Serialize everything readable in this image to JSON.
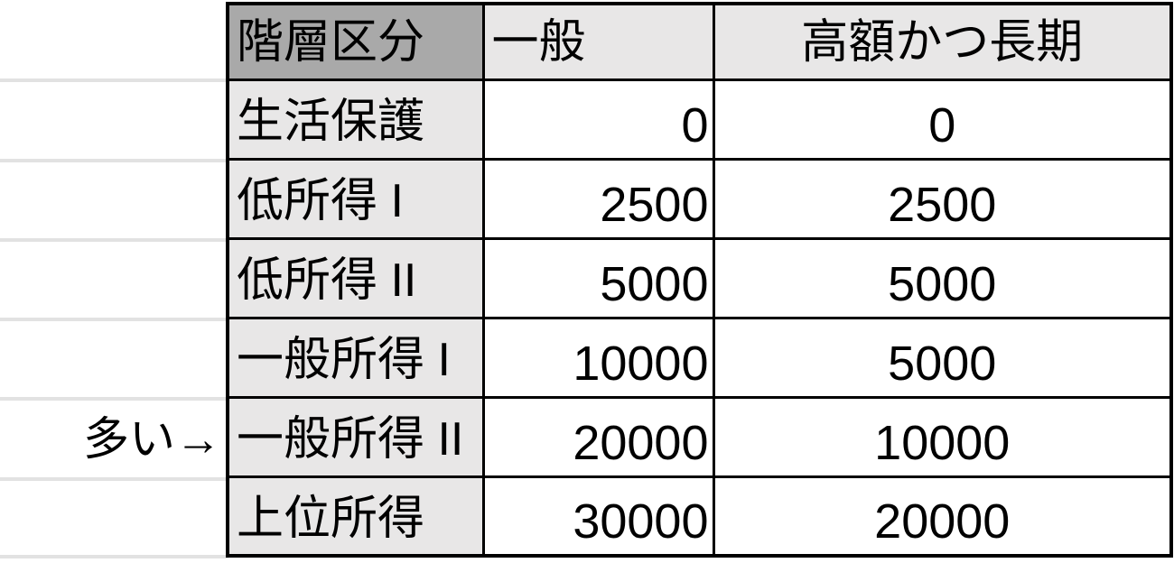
{
  "colors": {
    "header_dark_fill": "#a9a9a9",
    "light_gray_fill": "#e8e7e7",
    "cell_fill": "#ffffff",
    "table_border": "#000000",
    "text": "#000000",
    "margin_gridline": "#e2e2e2"
  },
  "annotation": {
    "text": "多い→",
    "target_row": "一般所得 II"
  },
  "table": {
    "headers": [
      {
        "label": "階層区分"
      },
      {
        "label": "一般"
      },
      {
        "label": "高額かつ長期"
      }
    ],
    "rows": [
      {
        "category": "生活保護",
        "general": "0",
        "expensive_long": "0"
      },
      {
        "category": "低所得 I",
        "general": "2500",
        "expensive_long": "2500"
      },
      {
        "category": "低所得 II",
        "general": "5000",
        "expensive_long": "5000"
      },
      {
        "category": "一般所得 I",
        "general": "10000",
        "expensive_long": "5000"
      },
      {
        "category": "一般所得 II",
        "general": "20000",
        "expensive_long": "10000"
      },
      {
        "category": "上位所得",
        "general": "30000",
        "expensive_long": "20000"
      }
    ]
  },
  "chart_data": {
    "type": "table",
    "title": "",
    "columns": [
      "階層区分",
      "一般",
      "高額かつ長期"
    ],
    "rows": [
      [
        "生活保護",
        0,
        0
      ],
      [
        "低所得 I",
        2500,
        2500
      ],
      [
        "低所得 II",
        5000,
        5000
      ],
      [
        "一般所得 I",
        10000,
        5000
      ],
      [
        "一般所得 II",
        20000,
        10000
      ],
      [
        "上位所得",
        30000,
        20000
      ]
    ],
    "annotations": [
      {
        "text": "多い→",
        "row": "一般所得 II",
        "position": "left-margin"
      }
    ],
    "layout_hints": {
      "column_alignment": [
        "left",
        "right",
        "center"
      ],
      "header_fills": [
        "dark-gray",
        "light-gray",
        "light-gray"
      ],
      "category_column_fill": "light-gray",
      "value_cells_fill": "white",
      "grid": "heavy black borders; faint sheet gridlines in left margin"
    }
  }
}
